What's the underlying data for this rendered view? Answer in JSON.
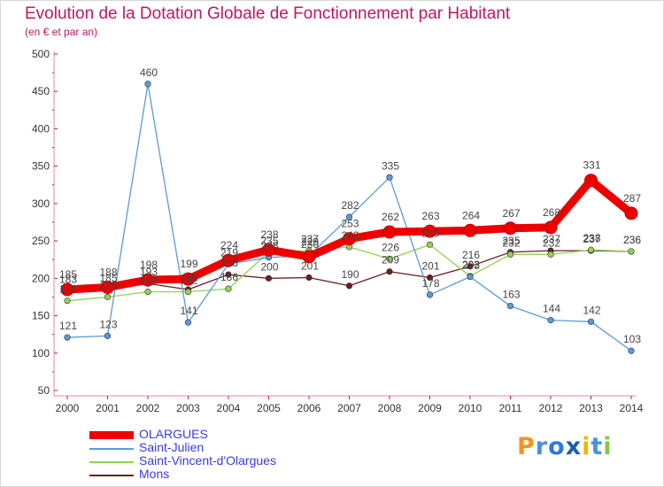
{
  "header": {
    "title": "Evolution de la Dotation Globale de Fonctionnement par Habitant",
    "subtitle": "(en € et par an)"
  },
  "logo": {
    "text": "Proxiti"
  },
  "colors": {
    "OLARGUES": "#ee0000",
    "Saint-Julien": "#5a9bd5",
    "Saint-Vincent-d'Olargues": "#8fd44f",
    "Mons": "#6b1f1f"
  },
  "chart_data": {
    "type": "line",
    "title": "Evolution de la Dotation Globale de Fonctionnement par Habitant",
    "subtitle": "(en € et par an)",
    "xlabel": "",
    "ylabel": "",
    "x": [
      "2000",
      "2001",
      "2002",
      "2003",
      "2004",
      "2005",
      "2006",
      "2007",
      "2008",
      "2009",
      "2010",
      "2011",
      "2012",
      "2013",
      "2014"
    ],
    "ylim": [
      50,
      500
    ],
    "yticks": [
      "50",
      "100",
      "150",
      "200",
      "250",
      "300",
      "350",
      "400",
      "450",
      "500"
    ],
    "grid": false,
    "legend": "bottom-left",
    "series": [
      {
        "name": "OLARGUES",
        "values": [
          185,
          188,
          198,
          199,
          224,
          238,
          229,
          253,
          262,
          263,
          264,
          267,
          268,
          331,
          287
        ],
        "labels": [
          "185",
          "188",
          "198",
          "199",
          "224",
          "238",
          "229",
          "253",
          "262",
          "263",
          "264",
          "267",
          "268",
          "331",
          "287"
        ]
      },
      {
        "name": "Saint-Julien",
        "values": [
          121,
          123,
          460,
          141,
          219,
          228,
          230,
          282,
          335,
          178,
          202,
          163,
          144,
          142,
          103
        ],
        "labels": [
          "121",
          "123",
          "460",
          "141",
          "219",
          "228",
          "230",
          "282",
          "335",
          "178",
          "202",
          "163",
          "144",
          "142",
          "103"
        ]
      },
      {
        "name": "Saint-Vincent-d'Olargues",
        "values": [
          170,
          175,
          182,
          182,
          186,
          235,
          237,
          242,
          226,
          245,
          203,
          232,
          232,
          238,
          236
        ],
        "labels": [
          "170",
          "175",
          "182",
          "182",
          "186",
          "235",
          "237",
          "242",
          "226",
          "245",
          "203",
          "232",
          "232",
          "238",
          "236"
        ]
      },
      {
        "name": "Mons",
        "values": [
          183,
          185,
          193,
          185,
          205,
          200,
          201,
          190,
          209,
          201,
          216,
          235,
          237,
          237,
          236
        ],
        "labels": [
          "183",
          "185",
          "193",
          "185",
          "205",
          "200",
          "201",
          "190",
          "209",
          "201",
          "216",
          "235",
          "237",
          "237",
          "236"
        ]
      }
    ]
  }
}
